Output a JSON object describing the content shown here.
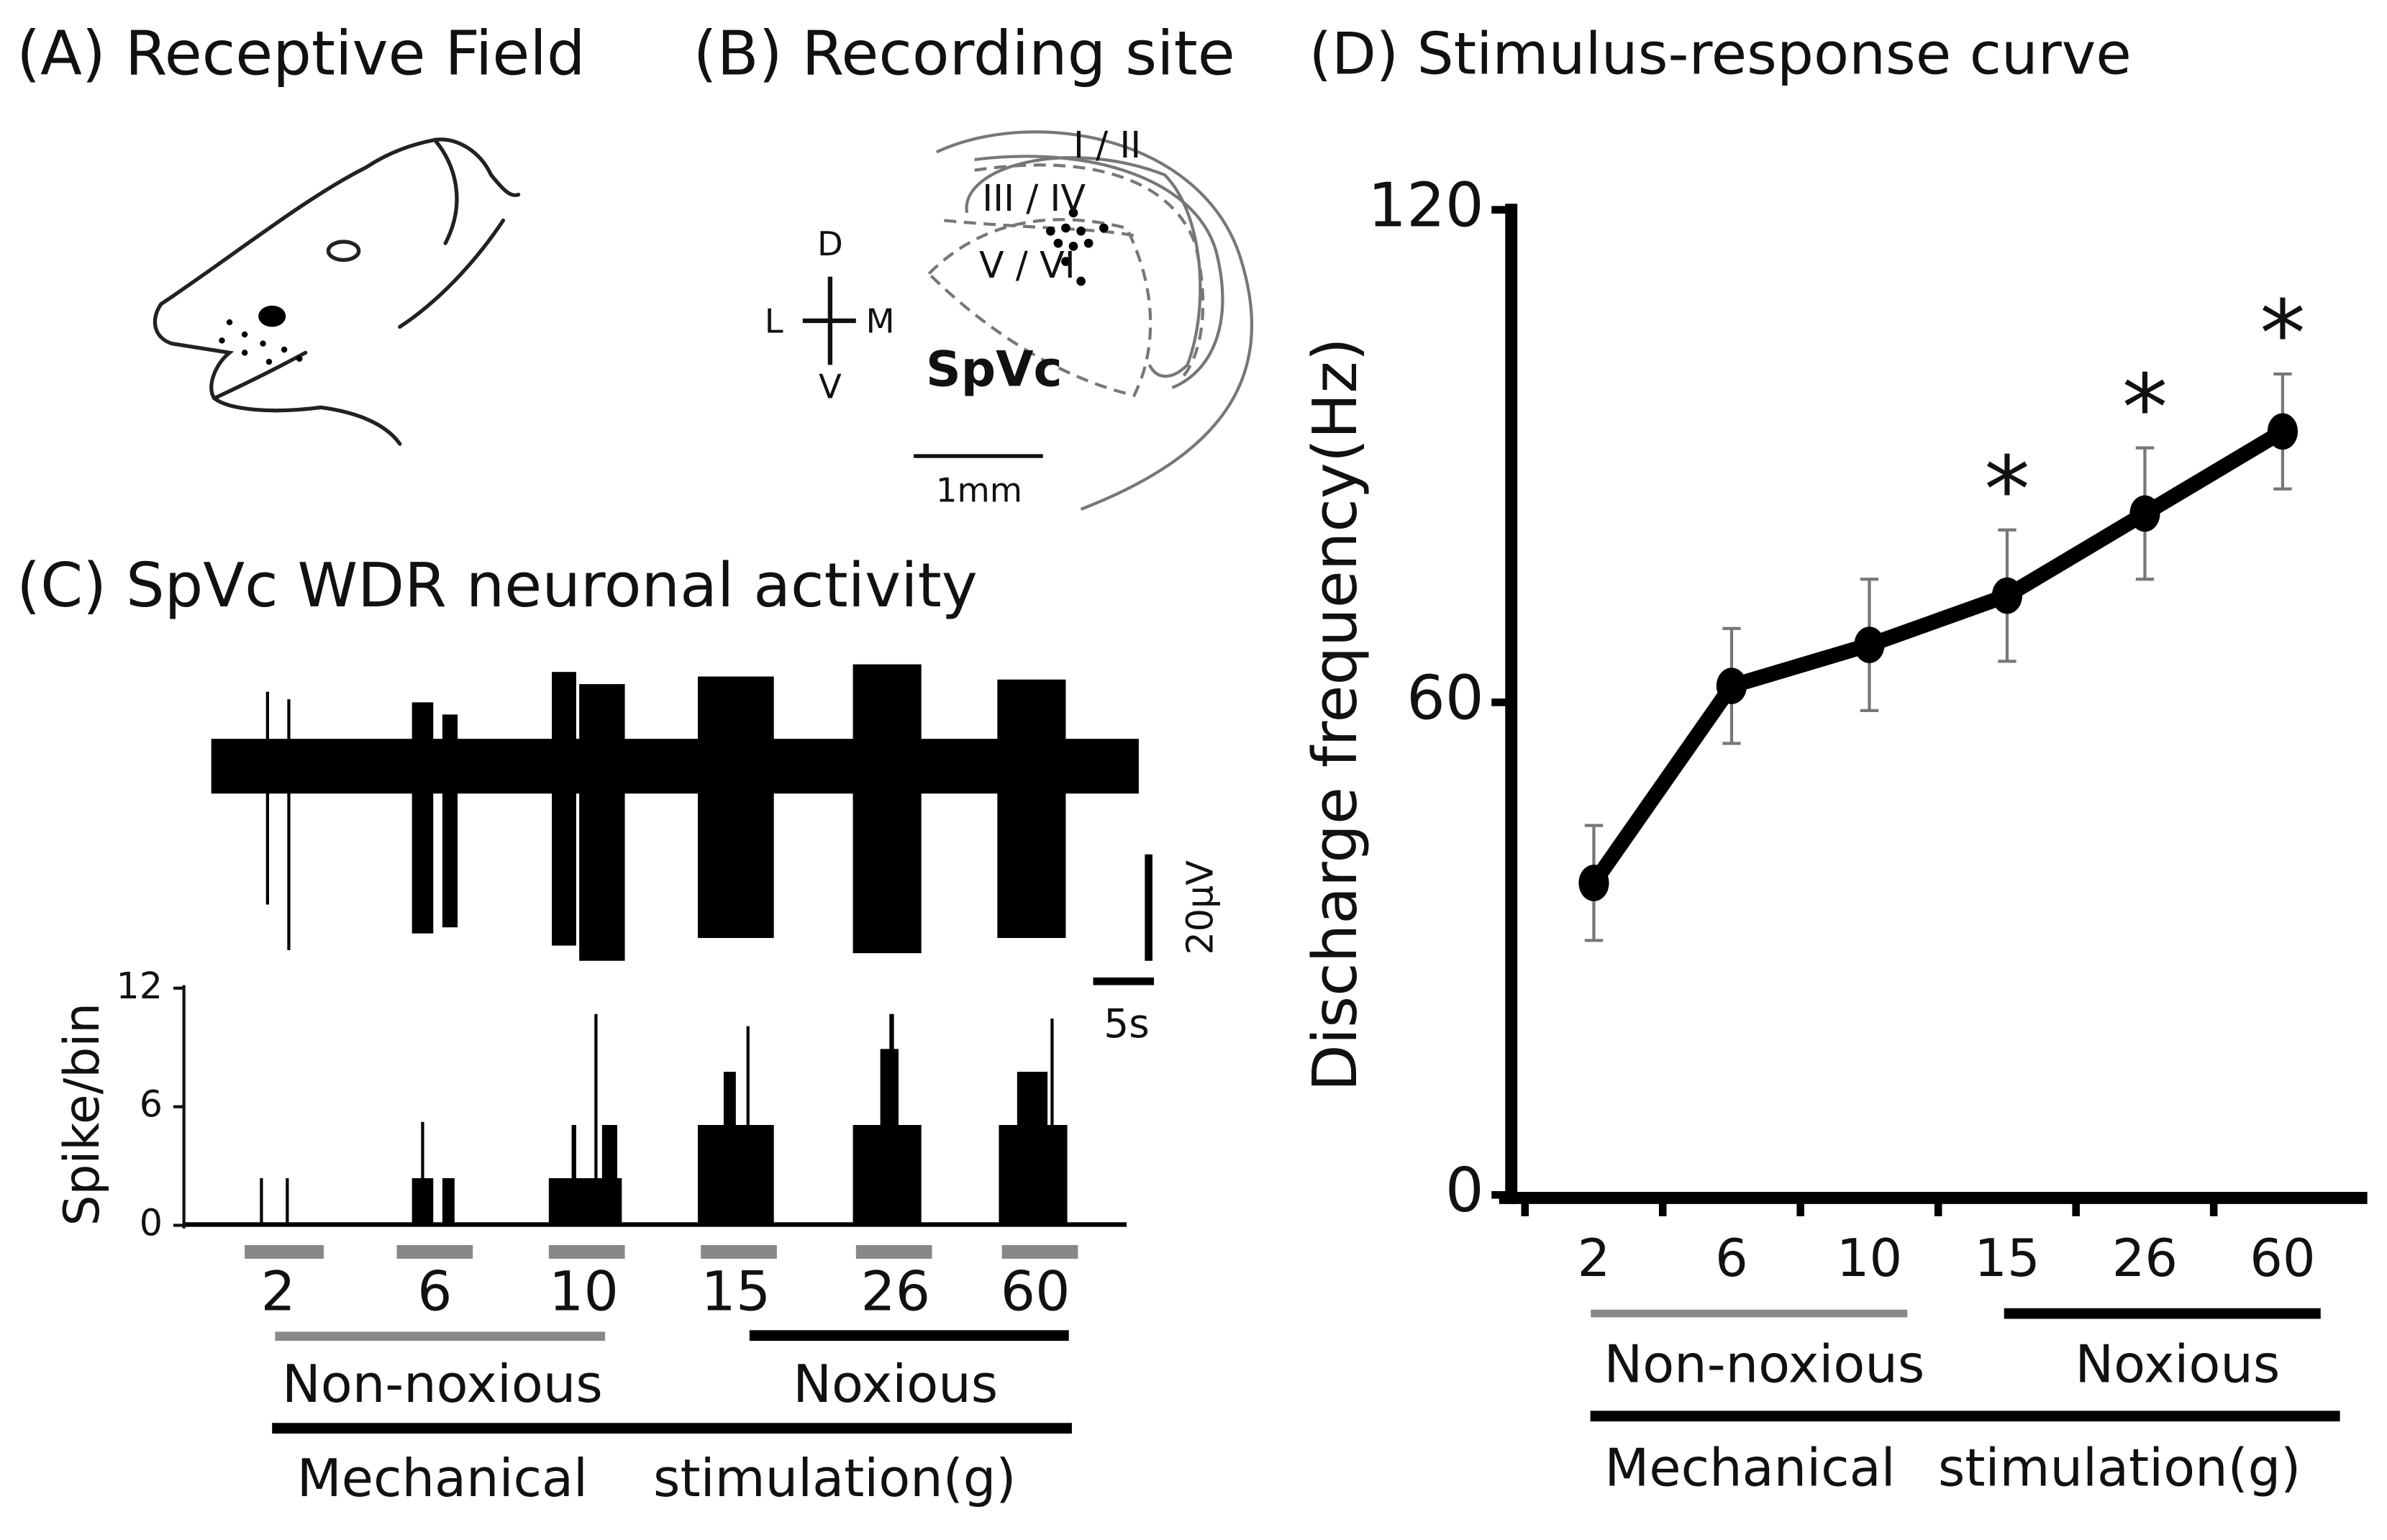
{
  "panel_a": {
    "title": "(A) Receptive Field"
  },
  "panel_b": {
    "title": "(B) Recording site",
    "layers": [
      "I / II",
      "III / IV",
      "V / VI"
    ],
    "region": "SpVc",
    "scale_bar": "1mm",
    "orientation": {
      "dorsal": "D",
      "ventral": "V",
      "lateral": "L",
      "medial": "M"
    }
  },
  "panel_c": {
    "title": "(C) SpVc WDR neuronal activity",
    "ylabel": "Spike/bin",
    "ylim": [
      0,
      12
    ],
    "yticks": [
      0,
      6,
      12
    ],
    "stimuli": [
      "2",
      "6",
      "10",
      "15",
      "26",
      "60"
    ],
    "voltage_scale": "20μV",
    "time_scale": "5s",
    "groups": [
      {
        "label": "Non-noxious",
        "color": "#888888"
      },
      {
        "label": "Noxious",
        "color": "#000000"
      }
    ],
    "xlabel": [
      "Mechanical",
      "stimulation(g)"
    ]
  },
  "chart_data": {
    "type": "line",
    "title": "(D) Stimulus-response curve",
    "ylabel": "Discharge frequency(Hz)",
    "categories": [
      "2",
      "6",
      "10",
      "15",
      "26",
      "60"
    ],
    "values": [
      38,
      62,
      67,
      73,
      83,
      93
    ],
    "errors": [
      7,
      7,
      8,
      8,
      8,
      7
    ],
    "significance": [
      null,
      null,
      null,
      "*",
      "*",
      "*"
    ],
    "color": "#000000",
    "error_color": "#777777",
    "ylim": [
      0,
      120
    ],
    "yticks": [
      0,
      60,
      120
    ],
    "groups": [
      {
        "label": "Non-noxious",
        "categories": [
          "2",
          "6",
          "10"
        ],
        "color": "#888888"
      },
      {
        "label": "Noxious",
        "categories": [
          "15",
          "26",
          "60"
        ],
        "color": "#000000"
      }
    ],
    "xlabel": [
      "Mechanical",
      "stimulation(g)"
    ]
  }
}
